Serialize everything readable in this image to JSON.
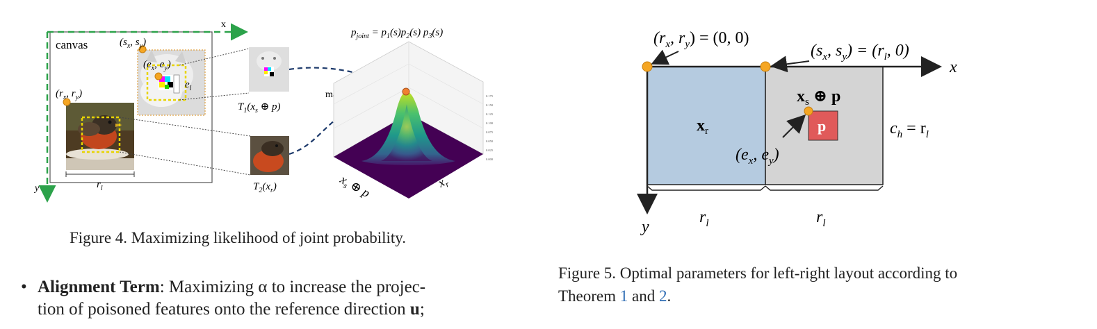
{
  "figure4": {
    "canvas_label": "canvas",
    "axis_x": "x",
    "axis_y": "y",
    "point_s": "(s",
    "point_s_sub_x": "x",
    "point_s_mid": ", s",
    "point_s_sub_y": "y",
    "point_s_close": ")",
    "point_e": "(e",
    "point_e_sub_x": "x",
    "point_e_mid": ", e",
    "point_e_sub_y": "y",
    "point_e_close": ")",
    "point_r": "(r",
    "point_r_sub_x": "x",
    "point_r_mid": ", r",
    "point_r_sub_y": "y",
    "point_r_close": ")",
    "e_l": "e",
    "e_l_sub": "l",
    "r_l": "r",
    "r_l_sub": "l",
    "t1": "T",
    "t1_sub": "1",
    "t1_rest": "(x",
    "t1_rest_sub": "s",
    "t1_end": " ⊕ p)",
    "t2": "T",
    "t2_sub": "2",
    "t2_rest": "(x",
    "t2_rest_sub": "r",
    "t2_end": ")",
    "p_joint": "p",
    "p_joint_sub": "joint",
    "p_joint_eq": " = p",
    "p1_sub": "1",
    "p1_rest": "(s)p",
    "p2_sub": "2",
    "p2_rest": "(s) p",
    "p3_sub": "3",
    "p3_rest": "(s)",
    "maximize": "maximize",
    "axis3d_left": "x",
    "axis3d_left_sub": "s",
    "axis3d_left_rest": " ⊕ p",
    "axis3d_right": "x",
    "axis3d_right_sub": "r",
    "z_ticks": [
      "0.175",
      "0.150",
      "0.125",
      "0.100",
      "0.075",
      "0.050",
      "0.025",
      "0.000"
    ],
    "caption": "Figure 4. Maximizing likelihood of joint probability."
  },
  "figure5": {
    "r_star": "(r",
    "r_star_sub_sup": "x",
    "r_star_mid": ", r",
    "r_star_sub_y": "y",
    "r_star_eq": ") = (0, 0)",
    "s_star": "(s",
    "s_star_sub_x": "x",
    "s_star_mid": ", s",
    "s_star_sub_y": "y",
    "s_star_eq": ") = (r",
    "s_star_sub_l": "l",
    "s_star_end": ", 0)",
    "axis_x": "x",
    "axis_y": "y",
    "x_r": "x",
    "x_r_sub": "r",
    "x_s_oplus_p": "x",
    "x_s_sub": "s",
    "x_s_rest": " ⊕ p",
    "p_label": "p",
    "e_star": "(e",
    "e_star_sub_x": "x",
    "e_star_mid": ", e",
    "e_star_sub_y": "y",
    "e_star_end": ")",
    "c_h": "c",
    "c_h_sub": "h",
    "c_h_eq": " = r",
    "c_h_sub_l": "l",
    "r_l_left": "r",
    "r_l_left_sub": "l",
    "r_l_right": "r",
    "r_l_right_sub": "l",
    "caption_prefix": "Figure 5.  Optimal parameters for left-right layout according to",
    "caption_line2_start": "Theorem ",
    "ref1": "1",
    "caption_and": " and ",
    "ref2": "2",
    "caption_end": "."
  },
  "bullet": {
    "term": "Alignment Term",
    "line1_rest": ": Maximizing α to increase the projec-",
    "line2": "tion of poisoned features onto the reference direction ",
    "line2_bold": "u",
    "line2_end": ";"
  },
  "colors": {
    "green_axis": "#2ca24a",
    "orange_dot": "#f5a623",
    "blue_panel": "#b5cbe0",
    "gray_panel": "#d4d4d4",
    "red_patch": "#e05a5a",
    "navy_dash": "#1d3a6b"
  }
}
